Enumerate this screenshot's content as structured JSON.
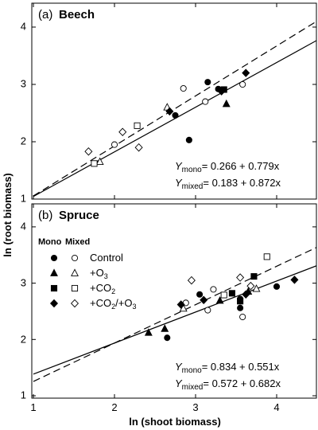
{
  "figure": {
    "xlabel": "ln (shoot biomass)",
    "ylabel": "ln (root biomass)",
    "x_ticks": [
      "1",
      "2",
      "3",
      "4"
    ],
    "y_ticks": [
      "1",
      "2",
      "3",
      "4"
    ]
  },
  "chart_data": [
    {
      "type": "scatter",
      "panel_letter": "(a)",
      "title": "Beech",
      "xlim": [
        1,
        4.5
      ],
      "ylim": [
        1,
        4.4
      ],
      "equations": {
        "mono_sub": "mono",
        "mono_rhs": "= 0.266 + 0.779x",
        "mixed_sub": "mixed",
        "mixed_rhs": "= 0.183 + 0.872x"
      },
      "lines": [
        {
          "group": "mono",
          "style": "solid",
          "intercept": 0.266,
          "slope": 0.779
        },
        {
          "group": "mixed",
          "style": "dashed",
          "intercept": 0.183,
          "slope": 0.872
        }
      ],
      "series": [
        {
          "treatment": "Control",
          "group": "mono",
          "marker": "circle",
          "filled": true,
          "points": [
            [
              2.75,
              2.46
            ],
            [
              2.92,
              2.03
            ],
            [
              3.15,
              3.04
            ],
            [
              3.28,
              2.92
            ]
          ]
        },
        {
          "treatment": "Control",
          "group": "mixed",
          "marker": "circle",
          "filled": false,
          "points": [
            [
              2.0,
              1.95
            ],
            [
              2.85,
              2.93
            ],
            [
              3.12,
              2.7
            ],
            [
              3.58,
              3.0
            ]
          ]
        },
        {
          "treatment": "+O3",
          "group": "mono",
          "marker": "triangle",
          "filled": true,
          "points": [
            [
              3.38,
              2.66
            ]
          ]
        },
        {
          "treatment": "+O3",
          "group": "mixed",
          "marker": "triangle",
          "filled": false,
          "points": [
            [
              1.82,
              1.65
            ],
            [
              2.65,
              2.6
            ]
          ]
        },
        {
          "treatment": "+CO2",
          "group": "mono",
          "marker": "square",
          "filled": true,
          "points": [
            [
              3.35,
              2.91
            ]
          ]
        },
        {
          "treatment": "+CO2",
          "group": "mixed",
          "marker": "square",
          "filled": false,
          "points": [
            [
              1.75,
              1.62
            ],
            [
              2.28,
              2.28
            ]
          ]
        },
        {
          "treatment": "+CO2/+O3",
          "group": "mono",
          "marker": "diamond",
          "filled": true,
          "points": [
            [
              2.68,
              2.53
            ],
            [
              3.32,
              2.88
            ],
            [
              3.62,
              3.2
            ]
          ]
        },
        {
          "treatment": "+CO2/+O3",
          "group": "mixed",
          "marker": "diamond",
          "filled": false,
          "points": [
            [
              1.68,
              1.83
            ],
            [
              2.1,
              2.17
            ],
            [
              2.3,
              1.9
            ]
          ]
        }
      ]
    },
    {
      "type": "scatter",
      "panel_letter": "(b)",
      "title": "Spruce",
      "xlim": [
        1,
        4.5
      ],
      "ylim": [
        1,
        4.4
      ],
      "legend": {
        "header_mono": "Mono",
        "header_mixed": "Mixed",
        "entries": [
          {
            "marker": "circle",
            "label": "Control"
          },
          {
            "marker": "triangle",
            "label": "+O",
            "sub": "3",
            "tail": ""
          },
          {
            "marker": "square",
            "label": "+CO",
            "sub": "2",
            "tail": ""
          },
          {
            "marker": "diamond",
            "label": "+CO",
            "sub": "2",
            "tail": "/+O",
            "sub2": "3"
          }
        ]
      },
      "equations": {
        "mono_sub": "mono",
        "mono_rhs": "= 0.834 + 0.551x",
        "mixed_sub": "mixed",
        "mixed_rhs": "= 0.572 + 0.682x"
      },
      "lines": [
        {
          "group": "mono",
          "style": "solid",
          "intercept": 0.834,
          "slope": 0.551
        },
        {
          "group": "mixed",
          "style": "dashed",
          "intercept": 0.572,
          "slope": 0.682
        }
      ],
      "series": [
        {
          "treatment": "Control",
          "group": "mono",
          "marker": "circle",
          "filled": true,
          "points": [
            [
              2.65,
              2.03
            ],
            [
              3.05,
              2.8
            ],
            [
              3.55,
              2.56
            ],
            [
              3.55,
              2.72
            ],
            [
              4.0,
              2.94
            ]
          ]
        },
        {
          "treatment": "Control",
          "group": "mixed",
          "marker": "circle",
          "filled": false,
          "points": [
            [
              2.88,
              2.65
            ],
            [
              3.15,
              2.52
            ],
            [
              3.22,
              2.89
            ],
            [
              3.58,
              2.4
            ]
          ]
        },
        {
          "treatment": "+O3",
          "group": "mono",
          "marker": "triangle",
          "filled": true,
          "points": [
            [
              2.42,
              2.12
            ],
            [
              2.62,
              2.19
            ],
            [
              3.3,
              2.69
            ],
            [
              3.65,
              2.85
            ]
          ]
        },
        {
          "treatment": "+O3",
          "group": "mixed",
          "marker": "triangle",
          "filled": false,
          "points": [
            [
              2.85,
              2.55
            ],
            [
              3.75,
              2.9
            ]
          ]
        },
        {
          "treatment": "+CO2",
          "group": "mono",
          "marker": "square",
          "filled": true,
          "points": [
            [
              3.45,
              2.82
            ],
            [
              3.55,
              2.68
            ],
            [
              3.72,
              3.12
            ]
          ]
        },
        {
          "treatment": "+CO2",
          "group": "mixed",
          "marker": "square",
          "filled": false,
          "points": [
            [
              3.35,
              2.79
            ],
            [
              3.88,
              3.47
            ]
          ]
        },
        {
          "treatment": "+CO2/+O3",
          "group": "mono",
          "marker": "diamond",
          "filled": true,
          "points": [
            [
              2.82,
              2.62
            ],
            [
              3.1,
              2.7
            ],
            [
              3.62,
              2.8
            ],
            [
              4.22,
              3.06
            ]
          ]
        },
        {
          "treatment": "+CO2/+O3",
          "group": "mixed",
          "marker": "diamond",
          "filled": false,
          "points": [
            [
              2.95,
              3.05
            ],
            [
              3.55,
              3.1
            ],
            [
              3.68,
              2.95
            ]
          ]
        }
      ]
    }
  ]
}
